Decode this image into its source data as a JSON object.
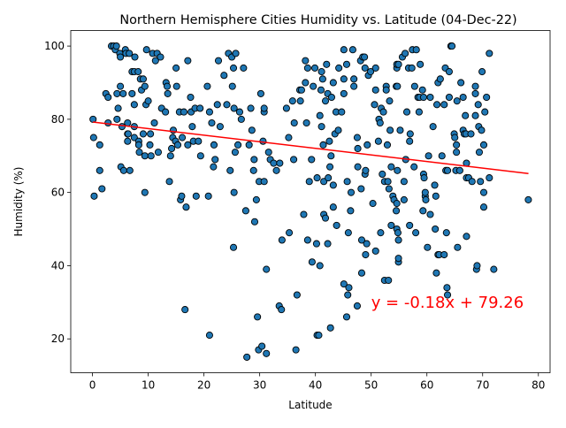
{
  "chart_data": {
    "type": "scatter",
    "title": "Northern Hemisphere Cities Humidity vs. Latitude (04-Dec-22)",
    "xlabel": "Latitude",
    "ylabel": "Humidity (%)",
    "xlim": [
      -3.9,
      82.1
    ],
    "ylim": [
      10.75,
      104.25
    ],
    "xticks": [
      0,
      10,
      20,
      30,
      40,
      50,
      60,
      70,
      80
    ],
    "yticks": [
      20,
      40,
      60,
      80,
      100
    ],
    "grid": false,
    "legend": "none",
    "colors": {
      "point_fill": "#1f77b4",
      "point_edge": "#000000",
      "regression": "#ff0000",
      "annotation": "#ff0000"
    },
    "regression": {
      "slope": -0.18,
      "intercept": 79.26,
      "x_range": [
        0.06,
        78.22
      ]
    },
    "annotation": {
      "text": "y = -0.18x + 79.26",
      "x": 50,
      "y": 30
    },
    "points": [
      [
        0.1,
        80
      ],
      [
        0.2,
        75
      ],
      [
        0.3,
        59
      ],
      [
        1.3,
        73
      ],
      [
        1.3,
        66
      ],
      [
        1.7,
        61
      ],
      [
        2.4,
        87
      ],
      [
        2.8,
        86
      ],
      [
        2.8,
        79
      ],
      [
        3.4,
        100
      ],
      [
        3.8,
        100
      ],
      [
        4.1,
        99
      ],
      [
        4.3,
        100
      ],
      [
        4.4,
        80
      ],
      [
        4.4,
        87
      ],
      [
        4.6,
        83
      ],
      [
        4.9,
        98
      ],
      [
        5,
        97
      ],
      [
        5,
        89
      ],
      [
        5.1,
        67
      ],
      [
        5.3,
        78
      ],
      [
        5.5,
        87
      ],
      [
        5.6,
        66
      ],
      [
        5.9,
        99
      ],
      [
        6,
        98
      ],
      [
        6.3,
        79
      ],
      [
        6.3,
        76
      ],
      [
        6.3,
        74
      ],
      [
        6.4,
        76
      ],
      [
        6.6,
        98
      ],
      [
        6.7,
        66
      ],
      [
        7.1,
        87
      ],
      [
        7.1,
        93
      ],
      [
        7.5,
        84
      ],
      [
        7.5,
        75
      ],
      [
        7.5,
        78
      ],
      [
        7.5,
        93
      ],
      [
        7.6,
        97
      ],
      [
        8.2,
        93
      ],
      [
        8.3,
        74
      ],
      [
        8.3,
        73
      ],
      [
        8.4,
        71
      ],
      [
        8.6,
        91
      ],
      [
        8.8,
        88
      ],
      [
        9.1,
        91
      ],
      [
        9.1,
        76
      ],
      [
        9.4,
        89
      ],
      [
        9.4,
        60
      ],
      [
        9.4,
        70
      ],
      [
        9.6,
        84
      ],
      [
        9.7,
        99
      ],
      [
        10,
        85
      ],
      [
        10.3,
        73
      ],
      [
        10.4,
        76
      ],
      [
        10.5,
        70
      ],
      [
        10.8,
        98
      ],
      [
        11.1,
        79
      ],
      [
        11.3,
        96
      ],
      [
        11.6,
        98
      ],
      [
        11.8,
        71
      ],
      [
        12.2,
        97
      ],
      [
        12.4,
        83
      ],
      [
        13.1,
        82
      ],
      [
        13.2,
        90
      ],
      [
        13.4,
        89
      ],
      [
        13.5,
        87
      ],
      [
        13.8,
        63
      ],
      [
        14,
        70
      ],
      [
        14.2,
        72
      ],
      [
        14.4,
        75
      ],
      [
        14.5,
        77
      ],
      [
        14.9,
        74
      ],
      [
        15.1,
        89
      ],
      [
        15,
        94
      ],
      [
        15.3,
        73
      ],
      [
        15.6,
        82
      ],
      [
        15.8,
        58
      ],
      [
        16,
        59
      ],
      [
        16.1,
        75
      ],
      [
        16.4,
        82
      ],
      [
        16.6,
        28
      ],
      [
        16.8,
        56
      ],
      [
        17.1,
        96
      ],
      [
        17.1,
        73
      ],
      [
        17.6,
        86
      ],
      [
        17.7,
        82
      ],
      [
        17.9,
        78
      ],
      [
        18.1,
        74
      ],
      [
        18.4,
        83
      ],
      [
        18.6,
        59
      ],
      [
        19,
        74
      ],
      [
        19.3,
        83
      ],
      [
        19.4,
        70
      ],
      [
        20.6,
        89
      ],
      [
        20.8,
        59
      ],
      [
        21,
        82
      ],
      [
        21,
        21
      ],
      [
        21.4,
        79
      ],
      [
        21.7,
        67
      ],
      [
        21.8,
        73
      ],
      [
        22,
        69
      ],
      [
        22.4,
        84
      ],
      [
        22.6,
        96
      ],
      [
        22.9,
        78
      ],
      [
        23.6,
        92
      ],
      [
        24.1,
        84
      ],
      [
        24.4,
        98
      ],
      [
        24.7,
        66
      ],
      [
        25,
        97
      ],
      [
        25.3,
        94
      ],
      [
        25.1,
        89
      ],
      [
        25.4,
        83
      ],
      [
        25.4,
        60
      ],
      [
        25.3,
        45
      ],
      [
        25.6,
        71
      ],
      [
        25.7,
        98
      ],
      [
        26.1,
        73
      ],
      [
        26.4,
        82
      ],
      [
        26.7,
        80
      ],
      [
        27.1,
        94
      ],
      [
        27.5,
        55
      ],
      [
        27.7,
        15
      ],
      [
        28.1,
        73
      ],
      [
        28.4,
        83
      ],
      [
        28.6,
        77
      ],
      [
        28.9,
        66
      ],
      [
        29,
        69
      ],
      [
        29.1,
        52
      ],
      [
        29.4,
        58
      ],
      [
        29.6,
        26
      ],
      [
        29.8,
        17
      ],
      [
        29.9,
        63
      ],
      [
        30.2,
        87
      ],
      [
        30.6,
        74
      ],
      [
        30.4,
        18
      ],
      [
        30.8,
        82
      ],
      [
        30.8,
        83
      ],
      [
        30.8,
        63
      ],
      [
        31.2,
        16
      ],
      [
        31.2,
        39
      ],
      [
        31.6,
        71
      ],
      [
        31.9,
        69
      ],
      [
        32.5,
        68
      ],
      [
        33,
        66
      ],
      [
        33.5,
        29
      ],
      [
        33.6,
        68
      ],
      [
        33.9,
        28
      ],
      [
        34,
        47
      ],
      [
        34.8,
        83
      ],
      [
        35.2,
        75
      ],
      [
        35.3,
        49
      ],
      [
        35.9,
        85
      ],
      [
        36.1,
        69
      ],
      [
        36.2,
        79
      ],
      [
        36.5,
        17
      ],
      [
        36.7,
        32
      ],
      [
        37.2,
        88
      ],
      [
        37.3,
        85
      ],
      [
        37.5,
        88
      ],
      [
        37.9,
        54
      ],
      [
        38.2,
        96
      ],
      [
        38.2,
        90
      ],
      [
        38.4,
        79
      ],
      [
        38.6,
        94
      ],
      [
        38.6,
        47
      ],
      [
        38.9,
        63
      ],
      [
        39.3,
        69
      ],
      [
        39.4,
        41
      ],
      [
        39.6,
        89
      ],
      [
        39.9,
        94
      ],
      [
        40.2,
        46
      ],
      [
        40.3,
        21
      ],
      [
        40.3,
        64
      ],
      [
        40.6,
        21
      ],
      [
        40.8,
        81
      ],
      [
        40.8,
        40
      ],
      [
        41,
        88
      ],
      [
        41.1,
        93
      ],
      [
        41.1,
        78
      ],
      [
        41.3,
        91
      ],
      [
        41.4,
        73
      ],
      [
        41.5,
        63
      ],
      [
        41.5,
        54
      ],
      [
        41.8,
        53
      ],
      [
        41.8,
        85
      ],
      [
        42,
        95
      ],
      [
        42.2,
        87
      ],
      [
        42.2,
        46
      ],
      [
        42.3,
        64
      ],
      [
        42.5,
        74
      ],
      [
        42.6,
        67
      ],
      [
        42.7,
        23
      ],
      [
        42.8,
        70
      ],
      [
        42.9,
        86
      ],
      [
        43.2,
        56
      ],
      [
        43.2,
        90
      ],
      [
        43.2,
        62
      ],
      [
        43.5,
        76
      ],
      [
        43.7,
        82
      ],
      [
        43.8,
        51
      ],
      [
        44.1,
        77
      ],
      [
        44.2,
        94
      ],
      [
        44.7,
        82
      ],
      [
        45.1,
        87
      ],
      [
        45.1,
        99
      ],
      [
        45.1,
        91
      ],
      [
        45.1,
        35
      ],
      [
        45.6,
        95
      ],
      [
        45.6,
        26
      ],
      [
        45.7,
        63
      ],
      [
        45.8,
        32
      ],
      [
        45.9,
        49
      ],
      [
        46,
        34
      ],
      [
        46.3,
        55
      ],
      [
        46.4,
        60
      ],
      [
        46.7,
        99
      ],
      [
        46.9,
        91
      ],
      [
        46.9,
        89
      ],
      [
        47.5,
        75
      ],
      [
        47.5,
        29
      ],
      [
        47.6,
        72
      ],
      [
        47.6,
        67
      ],
      [
        48.1,
        96
      ],
      [
        48.2,
        61
      ],
      [
        48.3,
        38
      ],
      [
        48.3,
        47
      ],
      [
        48.5,
        97
      ],
      [
        48.8,
        97
      ],
      [
        48.9,
        94
      ],
      [
        48.9,
        65
      ],
      [
        49,
        43
      ],
      [
        49,
        66
      ],
      [
        49.2,
        46
      ],
      [
        49.3,
        73
      ],
      [
        49.5,
        92
      ],
      [
        49.9,
        93
      ],
      [
        50.3,
        57
      ],
      [
        50.8,
        88
      ],
      [
        50.6,
        84
      ],
      [
        50.8,
        44
      ],
      [
        50.8,
        94
      ],
      [
        51.3,
        74
      ],
      [
        51.4,
        80
      ],
      [
        51.6,
        79
      ],
      [
        51.7,
        49
      ],
      [
        51.8,
        83
      ],
      [
        52,
        65
      ],
      [
        52.2,
        82
      ],
      [
        52.4,
        63
      ],
      [
        52.4,
        36
      ],
      [
        52.7,
        89
      ],
      [
        52.7,
        88
      ],
      [
        52.9,
        73
      ],
      [
        53,
        63
      ],
      [
        53.1,
        36
      ],
      [
        53.2,
        61
      ],
      [
        53.3,
        85
      ],
      [
        53.4,
        77
      ],
      [
        53.6,
        67
      ],
      [
        53.6,
        51
      ],
      [
        53.9,
        59
      ],
      [
        54.1,
        58
      ],
      [
        54.5,
        55
      ],
      [
        54.5,
        89
      ],
      [
        54.6,
        94
      ],
      [
        54.6,
        57
      ],
      [
        54.6,
        95
      ],
      [
        54.6,
        50
      ],
      [
        54.7,
        89
      ],
      [
        54.7,
        66
      ],
      [
        54.8,
        49
      ],
      [
        54.9,
        47
      ],
      [
        54.9,
        41
      ],
      [
        54.9,
        42
      ],
      [
        54.9,
        95
      ],
      [
        55.2,
        77
      ],
      [
        55.6,
        97
      ],
      [
        55.9,
        63
      ],
      [
        55.9,
        58
      ],
      [
        56.1,
        98
      ],
      [
        56.2,
        69
      ],
      [
        56.4,
        82
      ],
      [
        56.7,
        94
      ],
      [
        56.9,
        74
      ],
      [
        56.9,
        51
      ],
      [
        57,
        76
      ],
      [
        57.3,
        94
      ],
      [
        57.4,
        99
      ],
      [
        57.7,
        67
      ],
      [
        57.8,
        89
      ],
      [
        58,
        49
      ],
      [
        58.1,
        99
      ],
      [
        58.4,
        86
      ],
      [
        58.6,
        82
      ],
      [
        58.7,
        86
      ],
      [
        58.8,
        95
      ],
      [
        59.2,
        88
      ],
      [
        59.3,
        55
      ],
      [
        59.4,
        86
      ],
      [
        59.4,
        65
      ],
      [
        59.5,
        64
      ],
      [
        59.7,
        59
      ],
      [
        59.7,
        60
      ],
      [
        59.8,
        58
      ],
      [
        60.1,
        45
      ],
      [
        60.3,
        70
      ],
      [
        60.6,
        86
      ],
      [
        60.6,
        54
      ],
      [
        61.1,
        78
      ],
      [
        61.4,
        62
      ],
      [
        61.5,
        50
      ],
      [
        61.6,
        59
      ],
      [
        61.7,
        38
      ],
      [
        61.8,
        84
      ],
      [
        62,
        90
      ],
      [
        62,
        43
      ],
      [
        62.2,
        43
      ],
      [
        62.4,
        91
      ],
      [
        62.7,
        70
      ],
      [
        63.1,
        84
      ],
      [
        63.1,
        43
      ],
      [
        63.3,
        94
      ],
      [
        63.4,
        66
      ],
      [
        63.5,
        49
      ],
      [
        63.6,
        34
      ],
      [
        63.7,
        32
      ],
      [
        63.7,
        66
      ],
      [
        64,
        86
      ],
      [
        64,
        93
      ],
      [
        64.3,
        100
      ],
      [
        64.5,
        100
      ],
      [
        64.9,
        76
      ],
      [
        65,
        75
      ],
      [
        65.2,
        66
      ],
      [
        65.3,
        73
      ],
      [
        65.3,
        71
      ],
      [
        65.4,
        85
      ],
      [
        65.5,
        45
      ],
      [
        65.9,
        66
      ],
      [
        66.1,
        90
      ],
      [
        66.5,
        86
      ],
      [
        66.5,
        77
      ],
      [
        66.7,
        76
      ],
      [
        66.9,
        81
      ],
      [
        67,
        76
      ],
      [
        67.1,
        48
      ],
      [
        67.1,
        68
      ],
      [
        67.1,
        64
      ],
      [
        67.5,
        64
      ],
      [
        67.9,
        76
      ],
      [
        68.1,
        63
      ],
      [
        68.7,
        81
      ],
      [
        68.7,
        89
      ],
      [
        68.7,
        87
      ],
      [
        68.9,
        39
      ],
      [
        69,
        40
      ],
      [
        69.2,
        84
      ],
      [
        69.3,
        78
      ],
      [
        69.4,
        71
      ],
      [
        69.6,
        63
      ],
      [
        69.8,
        77
      ],
      [
        69.9,
        93
      ],
      [
        70.2,
        60
      ],
      [
        70.2,
        73
      ],
      [
        70.2,
        56
      ],
      [
        70.4,
        82
      ],
      [
        70.7,
        86
      ],
      [
        71.2,
        98
      ],
      [
        71.2,
        64
      ],
      [
        72,
        39
      ],
      [
        78.2,
        58
      ]
    ]
  }
}
